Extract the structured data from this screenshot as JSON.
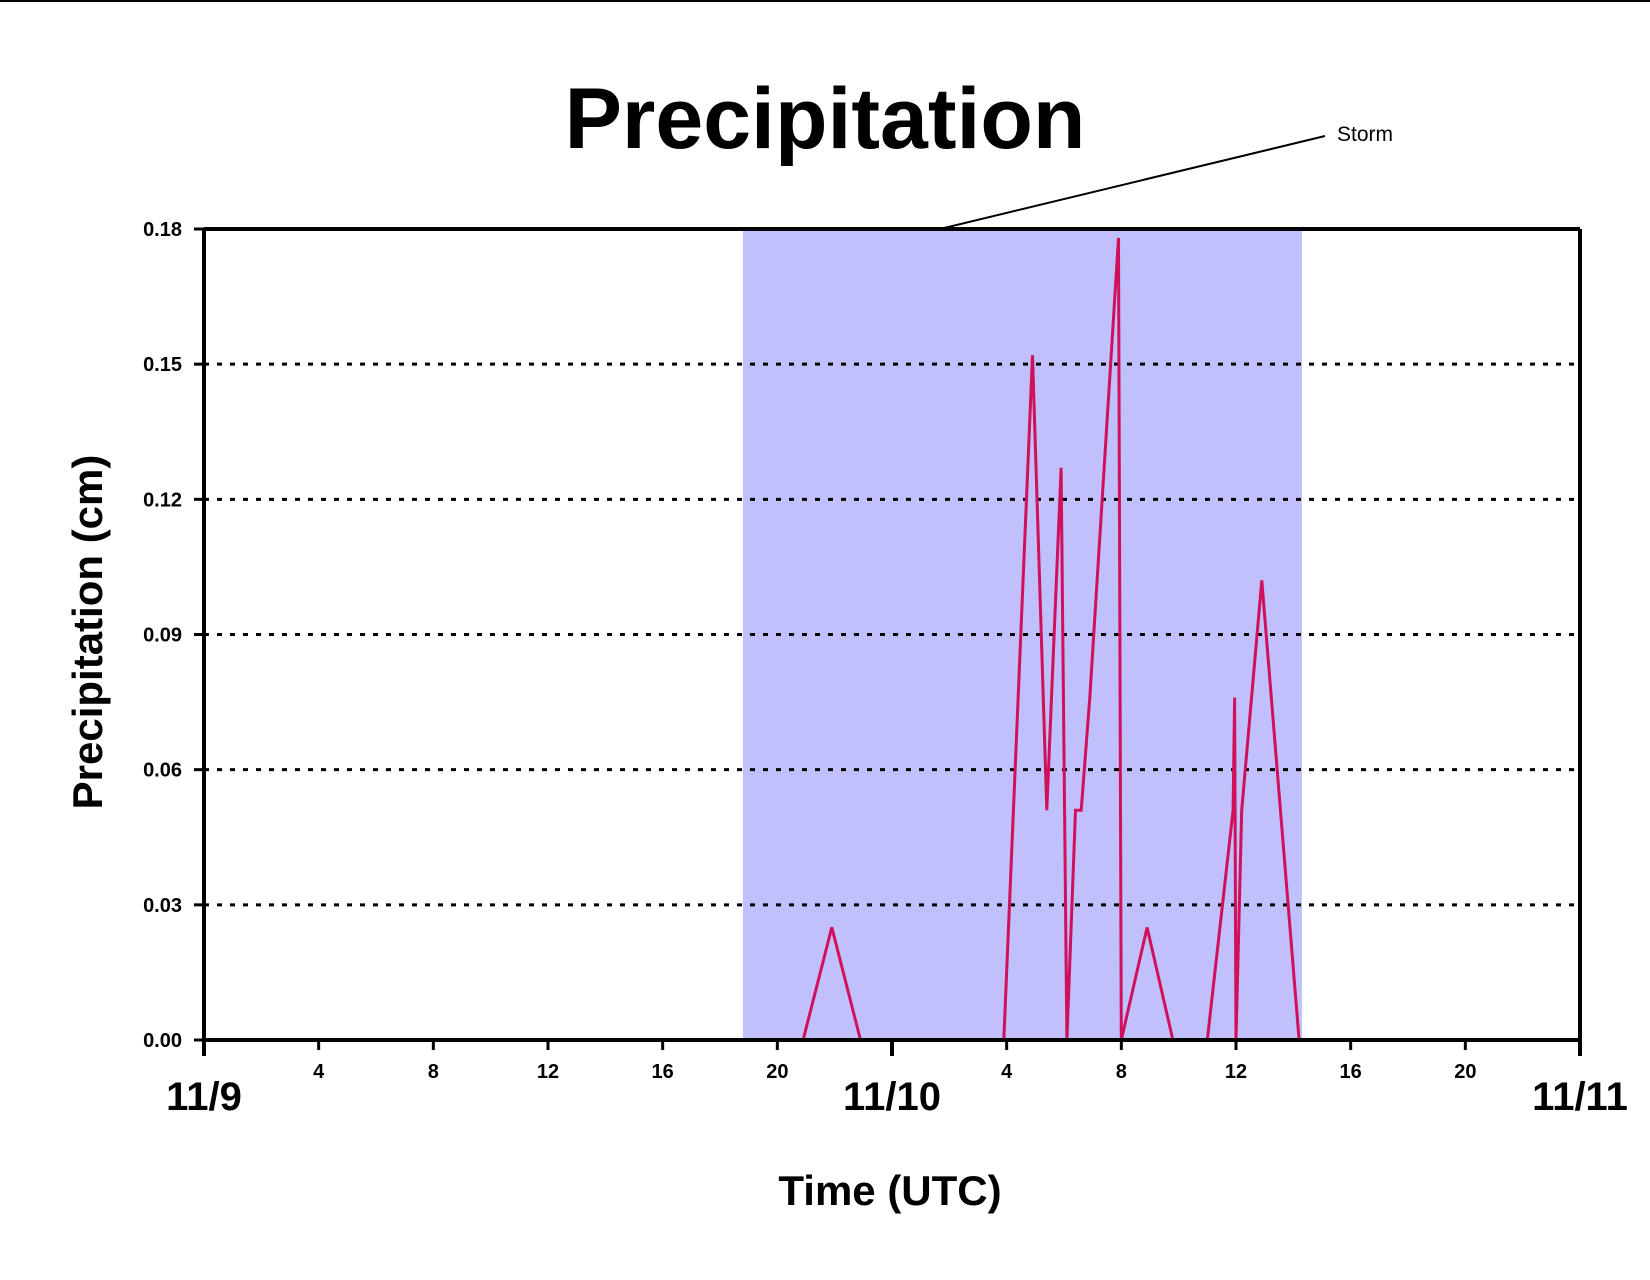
{
  "chart_data": {
    "type": "line",
    "title": "Precipitation",
    "xlabel": "Time (UTC)",
    "ylabel": "Precipitation (cm)",
    "x_unit": "hours since 11/9 00:00 UTC",
    "xlim": [
      0,
      48
    ],
    "ylim": [
      0,
      0.18
    ],
    "y_ticks": [
      "0.00",
      "0.03",
      "0.06",
      "0.09",
      "0.12",
      "0.15",
      "0.18"
    ],
    "y_tick_values": [
      0,
      0.03,
      0.06,
      0.09,
      0.12,
      0.15,
      0.18
    ],
    "x_hour_ticks": [
      {
        "x": 4,
        "label": "4"
      },
      {
        "x": 8,
        "label": "8"
      },
      {
        "x": 12,
        "label": "12"
      },
      {
        "x": 16,
        "label": "16"
      },
      {
        "x": 20,
        "label": "20"
      },
      {
        "x": 28,
        "label": "4"
      },
      {
        "x": 32,
        "label": "8"
      },
      {
        "x": 36,
        "label": "12"
      },
      {
        "x": 40,
        "label": "16"
      },
      {
        "x": 44,
        "label": "20"
      }
    ],
    "x_date_ticks": [
      {
        "x": 0,
        "label": "11/9"
      },
      {
        "x": 24,
        "label": "11/10"
      },
      {
        "x": 48,
        "label": "11/11"
      }
    ],
    "grid": {
      "y": true,
      "style": "dotted"
    },
    "shaded_region": {
      "label": "Storm",
      "x_start": 18.8,
      "x_end": 38.3,
      "color": "#c0c0fc"
    },
    "series": [
      {
        "name": "",
        "color": "#d0105a",
        "points": [
          [
            0,
            0
          ],
          [
            20.9,
            0
          ],
          [
            21.9,
            0.025
          ],
          [
            22.9,
            0
          ],
          [
            27.9,
            0
          ],
          [
            28.9,
            0.152
          ],
          [
            29.4,
            0.051
          ],
          [
            29.9,
            0.127
          ],
          [
            30.1,
            0
          ],
          [
            30.4,
            0.051
          ],
          [
            30.6,
            0.051
          ],
          [
            30.9,
            0.076
          ],
          [
            31.9,
            0.178
          ],
          [
            32.0,
            0
          ],
          [
            32.9,
            0.025
          ],
          [
            33.8,
            0
          ],
          [
            35.0,
            0
          ],
          [
            35.9,
            0.051
          ],
          [
            35.95,
            0.076
          ],
          [
            36.0,
            0
          ],
          [
            36.2,
            0.051
          ],
          [
            36.9,
            0.102
          ],
          [
            38.2,
            0
          ],
          [
            48,
            0
          ]
        ]
      }
    ]
  }
}
